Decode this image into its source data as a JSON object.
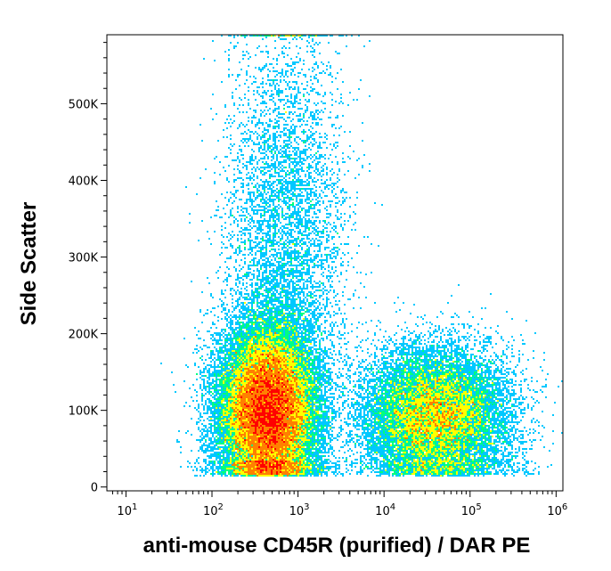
{
  "chart_data": {
    "type": "scatter",
    "title": "",
    "xlabel": "anti-mouse CD45R (purified) / DAR PE",
    "ylabel": "Side Scatter",
    "x_scale": "log",
    "xlim": [
      6,
      1200000
    ],
    "ylim": [
      -5000,
      590000
    ],
    "x_ticks": [
      {
        "value": 10,
        "base": "10",
        "exp": "1"
      },
      {
        "value": 100,
        "base": "10",
        "exp": "2"
      },
      {
        "value": 1000,
        "base": "10",
        "exp": "3"
      },
      {
        "value": 10000,
        "base": "10",
        "exp": "4"
      },
      {
        "value": 100000,
        "base": "10",
        "exp": "5"
      },
      {
        "value": 1000000,
        "base": "10",
        "exp": "6"
      }
    ],
    "y_ticks": [
      {
        "value": 0,
        "label": "0"
      },
      {
        "value": 100000,
        "label": "100K"
      },
      {
        "value": 200000,
        "label": "200K"
      },
      {
        "value": 300000,
        "label": "300K"
      },
      {
        "value": 400000,
        "label": "400K"
      },
      {
        "value": 500000,
        "label": "500K"
      }
    ],
    "populations": [
      {
        "x_center": 450,
        "x_spread_decades": 0.28,
        "y_center": 100000,
        "y_spread": 55000,
        "weight": 0.6
      },
      {
        "x_center": 40000,
        "x_spread_decades": 0.42,
        "y_center": 90000,
        "y_spread": 45000,
        "weight": 0.3
      },
      {
        "x_center": 700,
        "x_spread_decades": 0.35,
        "y_center": 320000,
        "y_spread": 140000,
        "weight": 0.1
      }
    ],
    "colormap": [
      "#0000ff",
      "#00c8ff",
      "#00ff80",
      "#ffff00",
      "#ff8000",
      "#ff0000"
    ],
    "grid": false
  }
}
